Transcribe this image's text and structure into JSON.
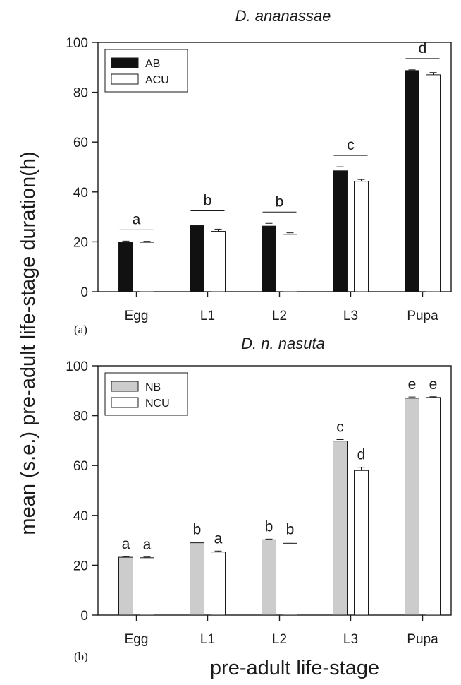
{
  "figure": {
    "ylabel": "mean (s.e.) pre-adult life-stage duration(h)",
    "xlabel": "pre-adult life-stage"
  },
  "chart_data": [
    {
      "type": "bar",
      "panel_label": "(a)",
      "title": "D. ananassae",
      "categories": [
        "Egg",
        "L1",
        "L2",
        "L3",
        "Pupa"
      ],
      "ylim": [
        0,
        100
      ],
      "yticks": [
        0,
        20,
        40,
        60,
        80,
        100
      ],
      "legend_position": "top-left",
      "series": [
        {
          "name": "AB",
          "color": "#111111",
          "values": [
            19.8,
            26.5,
            26.3,
            48.5,
            88.7
          ],
          "errors": [
            0.5,
            1.4,
            1.1,
            1.6,
            0.3
          ]
        },
        {
          "name": "ACU",
          "color": "#ffffff",
          "values": [
            19.8,
            24.2,
            23.0,
            44.3,
            87.0
          ],
          "errors": [
            0.4,
            0.9,
            0.6,
            0.7,
            0.9
          ]
        }
      ],
      "significance": [
        {
          "label": "a",
          "scope": "group",
          "category": 0
        },
        {
          "label": "b",
          "scope": "group",
          "category": 1
        },
        {
          "label": "b",
          "scope": "group",
          "category": 2
        },
        {
          "label": "c",
          "scope": "group",
          "category": 3
        },
        {
          "label": "d",
          "scope": "group",
          "category": 4
        }
      ]
    },
    {
      "type": "bar",
      "panel_label": "(b)",
      "title": "D. n. nasuta",
      "categories": [
        "Egg",
        "L1",
        "L2",
        "L3",
        "Pupa"
      ],
      "ylim": [
        0,
        100
      ],
      "yticks": [
        0,
        20,
        40,
        60,
        80,
        100
      ],
      "legend_position": "top-left",
      "series": [
        {
          "name": "NB",
          "color": "#cccccc",
          "values": [
            23.2,
            29.0,
            30.2,
            69.8,
            87.0
          ],
          "errors": [
            0.3,
            0.3,
            0.3,
            0.6,
            0.5
          ]
        },
        {
          "name": "NCU",
          "color": "#ffffff",
          "values": [
            23.0,
            25.3,
            28.8,
            58.0,
            87.3
          ],
          "errors": [
            0.3,
            0.4,
            0.5,
            1.3,
            0.3
          ]
        }
      ],
      "significance": [
        {
          "label": "a",
          "scope": "bar",
          "category": 0,
          "series": 0
        },
        {
          "label": "a",
          "scope": "bar",
          "category": 0,
          "series": 1
        },
        {
          "label": "b",
          "scope": "bar",
          "category": 1,
          "series": 0
        },
        {
          "label": "a",
          "scope": "bar",
          "category": 1,
          "series": 1
        },
        {
          "label": "b",
          "scope": "bar",
          "category": 2,
          "series": 0
        },
        {
          "label": "b",
          "scope": "bar",
          "category": 2,
          "series": 1
        },
        {
          "label": "c",
          "scope": "bar",
          "category": 3,
          "series": 0
        },
        {
          "label": "d",
          "scope": "bar",
          "category": 3,
          "series": 1
        },
        {
          "label": "e",
          "scope": "bar",
          "category": 4,
          "series": 0
        },
        {
          "label": "e",
          "scope": "bar",
          "category": 4,
          "series": 1
        }
      ]
    }
  ]
}
